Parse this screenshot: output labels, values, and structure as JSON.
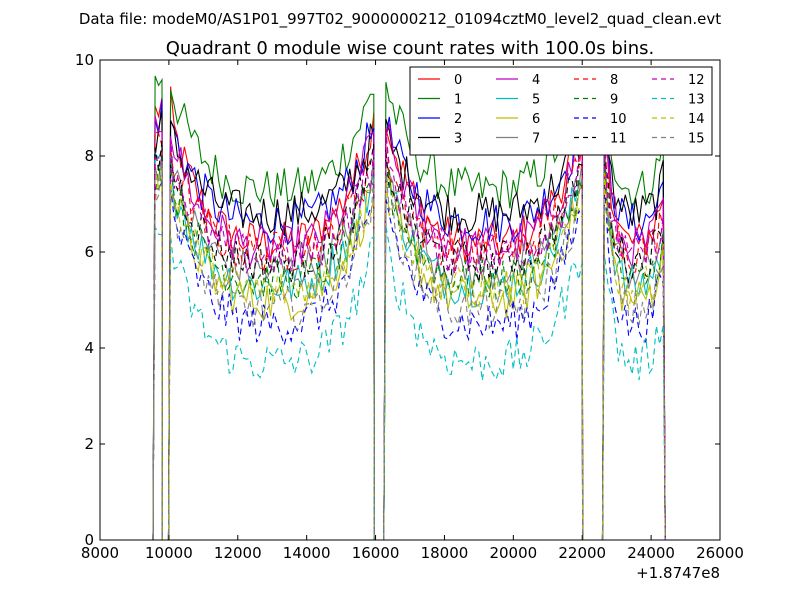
{
  "suptitle": "Data file: modeM0/AS1P01_997T02_9000000212_01094cztM0_level2_quad_clean.evt",
  "chart_data": {
    "type": "line",
    "title": "Quadrant 0 module wise count rates with 100.0s bins.",
    "xlabel": "",
    "ylabel": "",
    "x_offset_label": "+1.8747e8",
    "xlim": [
      8000,
      26000
    ],
    "ylim": [
      0,
      10
    ],
    "xticks": [
      8000,
      10000,
      12000,
      14000,
      16000,
      18000,
      20000,
      22000,
      24000,
      26000
    ],
    "yticks": [
      0,
      2,
      4,
      6,
      8,
      10
    ],
    "legend_position": "top-right",
    "segments": [
      {
        "x0": 9600,
        "x1": 9750,
        "peak_edge": "start"
      },
      {
        "x0": 10050,
        "x1": 15900,
        "peak_edge": "both"
      },
      {
        "x0": 16300,
        "x1": 21950,
        "peak_edge": "both"
      },
      {
        "x0": 22650,
        "x1": 24350,
        "peak_edge": "start"
      }
    ],
    "series": [
      {
        "name": "0",
        "color": "#ff0000",
        "dash": "solid",
        "level": 6.2,
        "peak": 9.2
      },
      {
        "name": "1",
        "color": "#008000",
        "dash": "solid",
        "level": 7.3,
        "peak": 9.8
      },
      {
        "name": "2",
        "color": "#0000ff",
        "dash": "solid",
        "level": 6.6,
        "peak": 9.0
      },
      {
        "name": "3",
        "color": "#000000",
        "dash": "solid",
        "level": 6.8,
        "peak": 8.7
      },
      {
        "name": "4",
        "color": "#bf00bf",
        "dash": "solid",
        "level": 6.1,
        "peak": 8.9
      },
      {
        "name": "5",
        "color": "#00bfbf",
        "dash": "solid",
        "level": 5.3,
        "peak": 8.0
      },
      {
        "name": "6",
        "color": "#bfbf00",
        "dash": "solid",
        "level": 5.0,
        "peak": 7.8
      },
      {
        "name": "7",
        "color": "#808080",
        "dash": "solid",
        "level": 5.6,
        "peak": 8.1
      },
      {
        "name": "8",
        "color": "#ff0000",
        "dash": "dashed",
        "level": 6.0,
        "peak": 8.4
      },
      {
        "name": "9",
        "color": "#008000",
        "dash": "dashed",
        "level": 5.4,
        "peak": 7.9
      },
      {
        "name": "10",
        "color": "#0000ff",
        "dash": "dashed",
        "level": 4.5,
        "peak": 7.4
      },
      {
        "name": "11",
        "color": "#000000",
        "dash": "dashed",
        "level": 5.8,
        "peak": 8.2
      },
      {
        "name": "12",
        "color": "#bf00bf",
        "dash": "dashed",
        "level": 5.9,
        "peak": 8.3
      },
      {
        "name": "13",
        "color": "#00bfbf",
        "dash": "dashed",
        "level": 3.7,
        "peak": 6.5
      },
      {
        "name": "14",
        "color": "#bfbf00",
        "dash": "dashed",
        "level": 5.2,
        "peak": 7.7
      },
      {
        "name": "15",
        "color": "#808080",
        "dash": "dashed",
        "level": 4.8,
        "peak": 7.6
      }
    ]
  }
}
